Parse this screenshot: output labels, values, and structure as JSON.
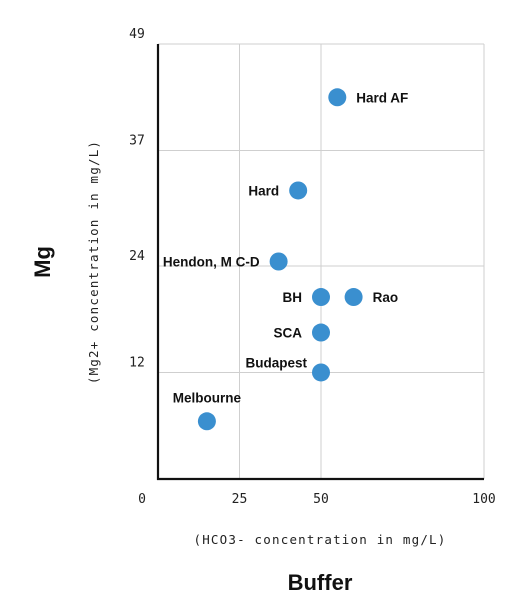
{
  "chart_data": {
    "type": "scatter",
    "title": "",
    "xlabel": "Buffer",
    "xlabel_sub": "(HCO3- concentration in mg/L)",
    "ylabel": "Mg",
    "ylabel_sub": "(Mg2+ concentration in mg/L)",
    "xlim": [
      0,
      100
    ],
    "ylim": [
      0,
      49
    ],
    "xticks": [
      0,
      25,
      50,
      100
    ],
    "xtick_labels": [
      "0",
      "25",
      "50",
      "100"
    ],
    "yticks": [
      12,
      24,
      37,
      49
    ],
    "ytick_labels": [
      "12",
      "24",
      "37",
      "49"
    ],
    "grid": true,
    "legend": "none",
    "point_color": "#3a8fcf",
    "points": [
      {
        "label": "Hard AF",
        "x": 55,
        "y": 43,
        "label_side": "right"
      },
      {
        "label": "Hard",
        "x": 43,
        "y": 32.5,
        "label_side": "left"
      },
      {
        "label": "Hendon, M C-D",
        "x": 37,
        "y": 24.5,
        "label_side": "left"
      },
      {
        "label": "BH",
        "x": 50,
        "y": 20.5,
        "label_side": "left"
      },
      {
        "label": "Rao",
        "x": 60,
        "y": 20.5,
        "label_side": "right"
      },
      {
        "label": "SCA",
        "x": 50,
        "y": 16.5,
        "label_side": "left"
      },
      {
        "label": "Budapest",
        "x": 50,
        "y": 12,
        "label_side": "above-left"
      },
      {
        "label": "Melbourne",
        "x": 15,
        "y": 6.5,
        "label_side": "above"
      }
    ]
  }
}
